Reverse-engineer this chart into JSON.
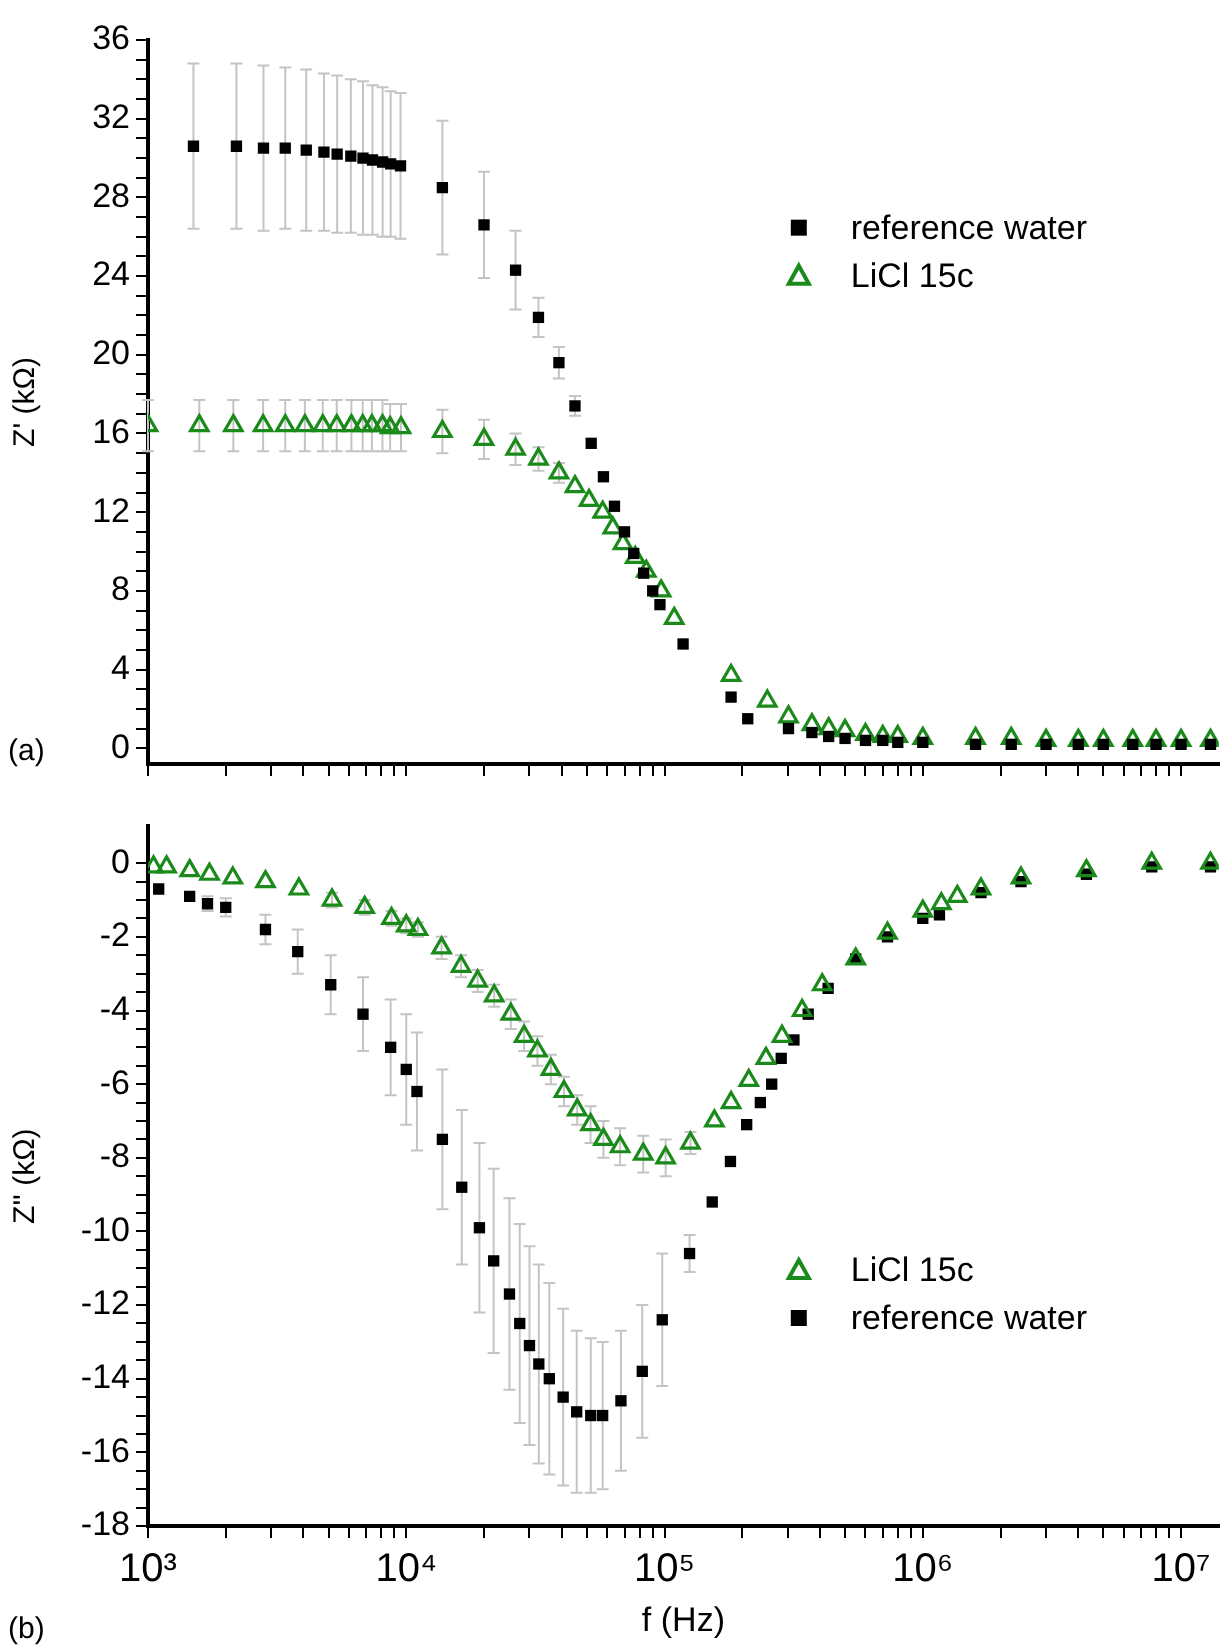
{
  "chart_data": [
    {
      "type": "scatter",
      "ylabel": "Z' (kΩ)",
      "annotations": [
        "(a)"
      ],
      "tick_labels": "y",
      "legend": "right",
      "grid": false,
      "xlim": [
        1000,
        14000000
      ],
      "ylim": [
        -0.8,
        36
      ],
      "xticks": [
        {
          "value": 1000,
          "label": null
        },
        {
          "value": 2000,
          "label": null
        },
        {
          "value": 3000,
          "label": null
        },
        {
          "value": 4000,
          "label": null
        },
        {
          "value": 5000,
          "label": null
        },
        {
          "value": 6000,
          "label": null
        },
        {
          "value": 7000,
          "label": null
        },
        {
          "value": 8000,
          "label": null
        },
        {
          "value": 9000,
          "label": null
        },
        {
          "value": 10000,
          "label": null
        },
        {
          "value": 20000,
          "label": null
        },
        {
          "value": 30000,
          "label": null
        },
        {
          "value": 40000,
          "label": null
        },
        {
          "value": 50000,
          "label": null
        },
        {
          "value": 60000,
          "label": null
        },
        {
          "value": 70000,
          "label": null
        },
        {
          "value": 80000,
          "label": null
        },
        {
          "value": 90000,
          "label": null
        },
        {
          "value": 100000,
          "label": null
        },
        {
          "value": 200000,
          "label": null
        },
        {
          "value": 300000,
          "label": null
        },
        {
          "value": 400000,
          "label": null
        },
        {
          "value": 500000,
          "label": null
        },
        {
          "value": 600000,
          "label": null
        },
        {
          "value": 700000,
          "label": null
        },
        {
          "value": 800000,
          "label": null
        },
        {
          "value": 900000,
          "label": null
        },
        {
          "value": 1000000,
          "label": null
        },
        {
          "value": 2000000,
          "label": null
        },
        {
          "value": 3000000,
          "label": null
        },
        {
          "value": 4000000,
          "label": null
        },
        {
          "value": 5000000,
          "label": null
        },
        {
          "value": 6000000,
          "label": null
        },
        {
          "value": 7000000,
          "label": null
        },
        {
          "value": 8000000,
          "label": null
        },
        {
          "value": 9000000,
          "label": null
        },
        {
          "value": 10000000,
          "label": null
        }
      ],
      "log": "x",
      "yticks": [
        0,
        {
          "value": 1,
          "label": null
        },
        {
          "value": 2,
          "label": null
        },
        {
          "value": 3,
          "label": null
        },
        4,
        {
          "value": 5,
          "label": null
        },
        {
          "value": 6,
          "label": null
        },
        {
          "value": 7,
          "label": null
        },
        8,
        {
          "value": 9,
          "label": null
        },
        {
          "value": 10,
          "label": null
        },
        {
          "value": 11,
          "label": null
        },
        12,
        {
          "value": 13,
          "label": null
        },
        {
          "value": 14,
          "label": null
        },
        {
          "value": 15,
          "label": null
        },
        16,
        {
          "value": 17,
          "label": null
        },
        {
          "value": 18,
          "label": null
        },
        {
          "value": 19,
          "label": null
        },
        20,
        {
          "value": 21,
          "label": null
        },
        {
          "value": 22,
          "label": null
        },
        {
          "value": 23,
          "label": null
        },
        24,
        {
          "value": 25,
          "label": null
        },
        {
          "value": 26,
          "label": null
        },
        {
          "value": 27,
          "label": null
        },
        28,
        {
          "value": 29,
          "label": null
        },
        {
          "value": 30,
          "label": null
        },
        {
          "value": 31,
          "label": null
        },
        32,
        {
          "value": 33,
          "label": null
        },
        {
          "value": 34,
          "label": null
        },
        {
          "value": 35,
          "label": null
        },
        36
      ],
      "series": [
        {
          "name": "reference water",
          "color": "#000000",
          "marker": "square",
          "x": [
            1500,
            2200,
            2800,
            3400,
            4100,
            4800,
            5400,
            6100,
            6800,
            7400,
            8100,
            8700,
            9500,
            13800,
            20000,
            26500,
            32500,
            39000,
            45000,
            52000,
            58000,
            64000,
            70000,
            76000,
            83000,
            90000,
            96000,
            118000,
            181000,
            210000,
            302000,
            372000,
            432000,
            500000,
            600000,
            700000,
            800000,
            1000000,
            1600000,
            2200000,
            3000000,
            4000000,
            5000000,
            6500000,
            8000000,
            10000000,
            13000000
          ],
          "values": [
            30.6,
            30.6,
            30.5,
            30.5,
            30.4,
            30.3,
            30.2,
            30.1,
            30.0,
            29.9,
            29.8,
            29.7,
            29.6,
            28.5,
            26.6,
            24.3,
            21.9,
            19.6,
            17.4,
            15.5,
            13.8,
            12.3,
            11.0,
            9.9,
            8.9,
            8.0,
            7.3,
            5.3,
            2.6,
            1.5,
            1.0,
            0.8,
            0.6,
            0.5,
            0.4,
            0.4,
            0.3,
            0.3,
            0.2,
            0.2,
            0.2,
            0.2,
            0.2,
            0.2,
            0.2,
            0.2,
            0.2
          ],
          "errors": [
            4.2,
            4.2,
            4.2,
            4.1,
            4.1,
            4.0,
            4.0,
            3.9,
            3.9,
            3.8,
            3.8,
            3.7,
            3.7,
            3.4,
            2.7,
            2.0,
            1.0,
            0.8,
            0.5,
            null,
            null,
            null,
            null,
            null,
            null,
            null,
            null,
            null,
            null,
            null,
            null,
            null,
            null,
            null,
            null,
            null,
            null,
            null,
            null,
            null,
            null,
            null,
            null,
            null,
            null,
            null,
            null
          ]
        },
        {
          "name": "LiCl 15c",
          "color": "#1a8a1a",
          "marker": "triangle",
          "x": [
            1000,
            1580,
            2140,
            2790,
            3400,
            4050,
            4750,
            5380,
            6130,
            6780,
            7360,
            8090,
            8660,
            9540,
            13800,
            20000,
            26500,
            32500,
            39000,
            45000,
            51000,
            57600,
            63000,
            69000,
            77000,
            85000,
            97000,
            109000,
            181000,
            250000,
            302000,
            372000,
            432000,
            500000,
            600000,
            700000,
            800000,
            1000000,
            1600000,
            2200000,
            3000000,
            4000000,
            5000000,
            6500000,
            8000000,
            10000000,
            13000000
          ],
          "values": [
            16.4,
            16.4,
            16.4,
            16.4,
            16.4,
            16.4,
            16.4,
            16.4,
            16.4,
            16.4,
            16.4,
            16.4,
            16.3,
            16.3,
            16.1,
            15.7,
            15.2,
            14.7,
            14.0,
            13.3,
            12.6,
            12.0,
            11.2,
            10.4,
            9.7,
            9.0,
            8.0,
            6.6,
            3.7,
            2.4,
            1.6,
            1.2,
            1.0,
            0.9,
            0.7,
            0.6,
            0.6,
            0.5,
            0.5,
            0.5,
            0.4,
            0.4,
            0.4,
            0.4,
            0.4,
            0.4,
            0.4
          ],
          "errors": [
            1.3,
            1.3,
            1.3,
            1.3,
            1.3,
            1.3,
            1.3,
            1.3,
            1.3,
            1.3,
            1.3,
            1.3,
            1.2,
            1.2,
            1.1,
            1.0,
            0.8,
            0.6,
            0.5,
            null,
            null,
            null,
            null,
            null,
            null,
            null,
            null,
            null,
            null,
            null,
            null,
            null,
            null,
            null,
            null,
            null,
            null,
            null,
            null,
            null,
            null,
            null,
            null,
            null,
            null,
            null,
            null
          ]
        }
      ]
    },
    {
      "type": "scatter",
      "xlabel": "f (Hz)",
      "ylabel": "Z'' (kΩ)",
      "annotations": [
        "(b)"
      ],
      "legend": "bottom right",
      "grid": false,
      "xlim": [
        1000,
        14000000
      ],
      "ylim": [
        -18,
        1
      ],
      "log": "x",
      "xticks": [
        {
          "value": 1000,
          "label": "10³"
        },
        {
          "value": 2000,
          "label": null
        },
        {
          "value": 3000,
          "label": null
        },
        {
          "value": 4000,
          "label": null
        },
        {
          "value": 5000,
          "label": null
        },
        {
          "value": 6000,
          "label": null
        },
        {
          "value": 7000,
          "label": null
        },
        {
          "value": 8000,
          "label": null
        },
        {
          "value": 9000,
          "label": null
        },
        {
          "value": 10000,
          "label": "10⁴"
        },
        {
          "value": 20000,
          "label": null
        },
        {
          "value": 30000,
          "label": null
        },
        {
          "value": 40000,
          "label": null
        },
        {
          "value": 50000,
          "label": null
        },
        {
          "value": 60000,
          "label": null
        },
        {
          "value": 70000,
          "label": null
        },
        {
          "value": 80000,
          "label": null
        },
        {
          "value": 90000,
          "label": null
        },
        {
          "value": 100000,
          "label": "10⁵"
        },
        {
          "value": 200000,
          "label": null
        },
        {
          "value": 300000,
          "label": null
        },
        {
          "value": 400000,
          "label": null
        },
        {
          "value": 500000,
          "label": null
        },
        {
          "value": 600000,
          "label": null
        },
        {
          "value": 700000,
          "label": null
        },
        {
          "value": 800000,
          "label": null
        },
        {
          "value": 900000,
          "label": null
        },
        {
          "value": 1000000,
          "label": "10⁶"
        },
        {
          "value": 2000000,
          "label": null
        },
        {
          "value": 3000000,
          "label": null
        },
        {
          "value": 4000000,
          "label": null
        },
        {
          "value": 5000000,
          "label": null
        },
        {
          "value": 6000000,
          "label": null
        },
        {
          "value": 7000000,
          "label": null
        },
        {
          "value": 8000000,
          "label": null
        },
        {
          "value": 9000000,
          "label": null
        },
        {
          "value": 10000000,
          "label": "10⁷"
        }
      ],
      "yticks": [
        -18,
        {
          "value": -17.5,
          "label": null
        },
        {
          "value": -17,
          "label": null
        },
        {
          "value": -16.5,
          "label": null
        },
        -16,
        {
          "value": -15.5,
          "label": null
        },
        {
          "value": -15,
          "label": null
        },
        {
          "value": -14.5,
          "label": null
        },
        -14,
        {
          "value": -13.5,
          "label": null
        },
        {
          "value": -13,
          "label": null
        },
        {
          "value": -12.5,
          "label": null
        },
        -12,
        {
          "value": -11.5,
          "label": null
        },
        {
          "value": -11,
          "label": null
        },
        {
          "value": -10.5,
          "label": null
        },
        -10,
        {
          "value": -9.5,
          "label": null
        },
        {
          "value": -9,
          "label": null
        },
        {
          "value": -8.5,
          "label": null
        },
        -8,
        {
          "value": -7.5,
          "label": null
        },
        {
          "value": -7,
          "label": null
        },
        {
          "value": -6.5,
          "label": null
        },
        -6,
        {
          "value": -5.5,
          "label": null
        },
        {
          "value": -5,
          "label": null
        },
        {
          "value": -4.5,
          "label": null
        },
        -4,
        {
          "value": -3.5,
          "label": null
        },
        {
          "value": -3,
          "label": null
        },
        {
          "value": -2.5,
          "label": null
        },
        -2,
        {
          "value": -1.5,
          "label": null
        },
        {
          "value": -1,
          "label": null
        },
        {
          "value": -0.5,
          "label": null
        },
        0
      ],
      "series": [
        {
          "name": "LiCl 15c",
          "color": "#1a8a1a",
          "marker": "triangle",
          "x": [
            1050,
            1180,
            1450,
            1730,
            2130,
            2850,
            3840,
            5160,
            6900,
            8770,
            10000,
            11100,
            13700,
            16300,
            18900,
            21900,
            25400,
            28600,
            32200,
            36300,
            40800,
            45900,
            51700,
            58000,
            67300,
            82700,
            101000,
            126000,
            156000,
            181000,
            212000,
            247000,
            285000,
            341000,
            408000,
            550000,
            730000,
            1000000,
            1180000,
            1360000,
            1680000,
            2400000,
            4300000,
            7700000,
            13000000
          ],
          "values": [
            -0.1,
            -0.1,
            -0.2,
            -0.3,
            -0.4,
            -0.5,
            -0.7,
            -1.0,
            -1.2,
            -1.5,
            -1.7,
            -1.8,
            -2.3,
            -2.8,
            -3.2,
            -3.6,
            -4.1,
            -4.7,
            -5.1,
            -5.6,
            -6.2,
            -6.7,
            -7.1,
            -7.5,
            -7.7,
            -7.9,
            -8.0,
            -7.6,
            -7.0,
            -6.5,
            -5.9,
            -5.3,
            -4.7,
            -4.0,
            -3.3,
            -2.6,
            -1.9,
            -1.3,
            -1.1,
            -0.9,
            -0.7,
            -0.4,
            -0.2,
            0,
            0
          ],
          "errors": [
            null,
            null,
            null,
            null,
            null,
            null,
            null,
            0.2,
            0.2,
            0.2,
            0.2,
            0.2,
            0.3,
            0.3,
            0.3,
            0.3,
            0.4,
            0.4,
            0.4,
            0.4,
            0.4,
            0.4,
            0.5,
            0.5,
            0.5,
            0.5,
            0.5,
            0.3,
            null,
            null,
            null,
            null,
            null,
            null,
            null,
            null,
            null,
            null,
            null,
            null,
            null,
            null,
            null,
            null,
            null
          ]
        },
        {
          "name": "reference water",
          "color": "#000000",
          "marker": "square",
          "x": [
            1100,
            1450,
            1700,
            2000,
            2850,
            3800,
            5100,
            6800,
            8700,
            10000,
            11000,
            13800,
            16400,
            19200,
            21800,
            25100,
            27500,
            30000,
            32600,
            35800,
            40500,
            45700,
            51800,
            57600,
            67800,
            82000,
            98000,
            125000,
            153000,
            180000,
            208000,
            235000,
            260000,
            283000,
            317000,
            360000,
            430000,
            550000,
            730000,
            1000000,
            1160000,
            1680000,
            2400000,
            4300000,
            7700000,
            13000000
          ],
          "values": [
            -0.7,
            -0.9,
            -1.1,
            -1.2,
            -1.8,
            -2.4,
            -3.3,
            -4.1,
            -5.0,
            -5.6,
            -6.2,
            -7.5,
            -8.8,
            -9.9,
            -10.8,
            -11.7,
            -12.5,
            -13.1,
            -13.6,
            -14.0,
            -14.5,
            -14.9,
            -15.0,
            -15.0,
            -14.6,
            -13.8,
            -12.4,
            -10.6,
            -9.2,
            -8.1,
            -7.1,
            -6.5,
            -6.0,
            -5.3,
            -4.8,
            -4.1,
            -3.4,
            -2.6,
            -2.0,
            -1.5,
            -1.4,
            -0.8,
            -0.5,
            -0.3,
            -0.1,
            -0.1
          ],
          "errors": [
            null,
            null,
            0.2,
            0.25,
            0.4,
            0.6,
            0.8,
            1.0,
            1.3,
            1.5,
            1.6,
            1.9,
            2.1,
            2.3,
            2.5,
            2.6,
            2.7,
            2.7,
            2.7,
            2.6,
            2.4,
            2.2,
            2.1,
            2.0,
            1.9,
            1.8,
            1.8,
            0.5,
            null,
            null,
            null,
            null,
            null,
            null,
            null,
            null,
            null,
            null,
            null,
            null,
            null,
            null,
            null,
            null,
            null,
            null
          ]
        }
      ]
    }
  ]
}
